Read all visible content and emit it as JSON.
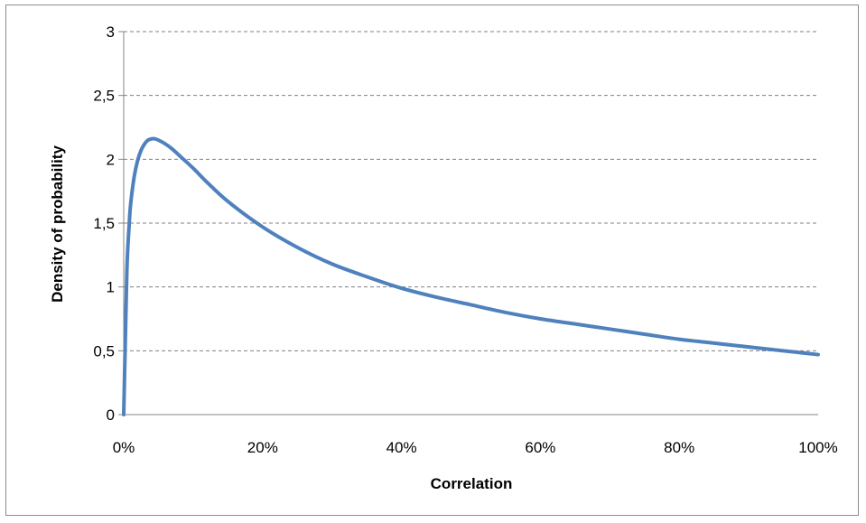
{
  "chart_data": {
    "type": "line",
    "title": "",
    "xlabel": "Correlation",
    "ylabel": "Density of probability",
    "xlim": [
      0,
      1
    ],
    "ylim": [
      0,
      3
    ],
    "grid": true,
    "legend": "none",
    "x_ticks": [
      "0%",
      "20%",
      "40%",
      "60%",
      "80%",
      "100%"
    ],
    "y_ticks": [
      "0",
      "0,5",
      "1",
      "1,5",
      "2",
      "2,5",
      "3"
    ],
    "colors": {
      "series": "#4f81bd",
      "grid": "#808080",
      "axis": "#868686"
    },
    "series": [
      {
        "x": [
          0,
          0.003,
          0.005,
          0.008,
          0.01,
          0.015,
          0.02,
          0.025,
          0.03,
          0.035,
          0.04,
          0.045,
          0.05,
          0.06,
          0.07,
          0.08,
          0.1,
          0.12,
          0.15,
          0.2,
          0.25,
          0.3,
          0.35,
          0.4,
          0.45,
          0.5,
          0.55,
          0.6,
          0.65,
          0.7,
          0.75,
          0.8,
          0.85,
          0.9,
          0.95,
          1.0
        ],
        "y": [
          0,
          0.75,
          1.2,
          1.5,
          1.65,
          1.86,
          1.99,
          2.07,
          2.12,
          2.15,
          2.16,
          2.16,
          2.15,
          2.12,
          2.08,
          2.03,
          1.93,
          1.82,
          1.67,
          1.47,
          1.31,
          1.18,
          1.08,
          0.99,
          0.92,
          0.86,
          0.8,
          0.75,
          0.71,
          0.67,
          0.63,
          0.59,
          0.56,
          0.53,
          0.5,
          0.47
        ]
      }
    ]
  }
}
